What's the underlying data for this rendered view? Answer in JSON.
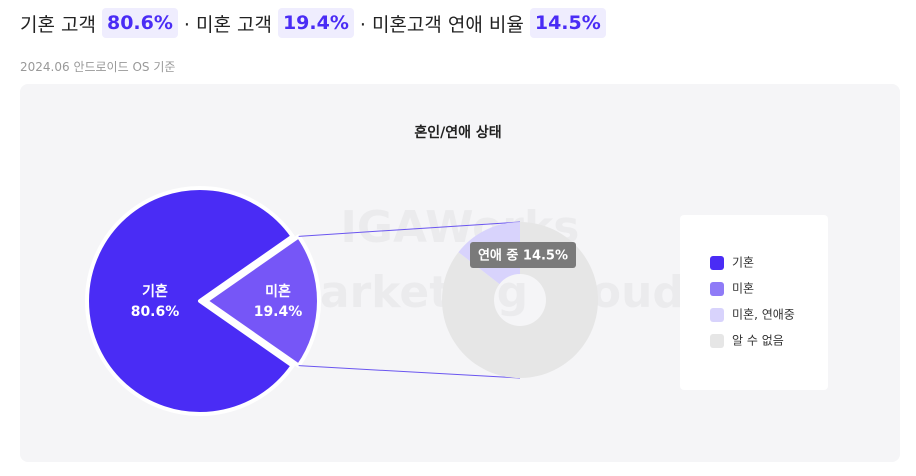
{
  "header": {
    "title_parts": [
      "기혼 고객",
      "80.6%",
      "· 미혼 고객",
      "19.4%",
      "· 미혼고객 연애 비율",
      "14.5%"
    ],
    "subtitle": "2024.06 안드로이드 OS 기준"
  },
  "chart_data": {
    "type": "pie",
    "title": "혼인/연애 상태",
    "watermark": [
      "IGAWorks",
      "Marketing Cloud"
    ],
    "categories": [
      "기혼",
      "미혼"
    ],
    "values": [
      80.6,
      19.4
    ],
    "value_labels": [
      "80.6%",
      "19.4%"
    ],
    "colors": [
      "#4a2cf5",
      "#7656f7"
    ],
    "sub": {
      "type": "donut",
      "categories": [
        "미혼, 연애중",
        "알 수 없음"
      ],
      "values": [
        14.5,
        85.5
      ],
      "colors": [
        "#d8d3fc",
        "#e6e6e6"
      ],
      "tooltip": "연애 중 14.5%"
    }
  }
}
